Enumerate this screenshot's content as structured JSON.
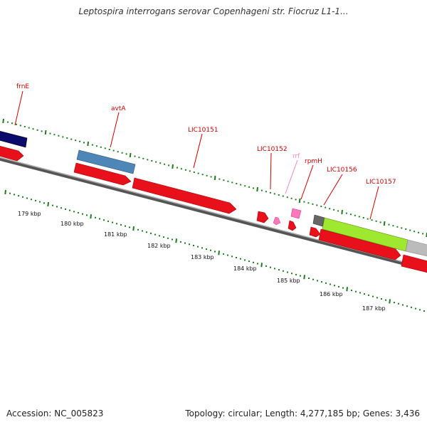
{
  "title": "Leptospira interrogans serovar Copenhageni str. Fiocruz L1-1...",
  "footer": {
    "accession": "Accession: NC_005823",
    "summary": "Topology: circular; Length: 4,277,185 bp; Genes: 3,436"
  },
  "colors": {
    "cds": "#e8101a",
    "gene_label": "#cc0000",
    "trna": "#ff77bb",
    "trna_label": "#ee88bb",
    "backbone": "#777777",
    "tick": "#1e7d1e",
    "navy": "#0b0b6e",
    "steelblue": "#4f86b8",
    "lime": "#9ee830",
    "gray": "#bbbbbb",
    "darkgray": "#666666"
  },
  "scale_labels": [
    "179 kbp",
    "180 kbp",
    "181 kbp",
    "182 kbp",
    "183 kbp",
    "184 kbp",
    "185 kbp",
    "186 kbp",
    "187 kbp"
  ],
  "gene_labels": [
    {
      "id": "frnE",
      "text": "frnE",
      "kind": "cds"
    },
    {
      "id": "avtA",
      "text": "avtA",
      "kind": "cds"
    },
    {
      "id": "LIC10151",
      "text": "LIC10151",
      "kind": "cds"
    },
    {
      "id": "LIC10152",
      "text": "LIC10152",
      "kind": "cds"
    },
    {
      "id": "rrf",
      "text": "rrf",
      "kind": "rna"
    },
    {
      "id": "rpmH",
      "text": "rpmH",
      "kind": "cds"
    },
    {
      "id": "LIC10156",
      "text": "LIC10156",
      "kind": "cds"
    },
    {
      "id": "LIC10157",
      "text": "LIC10157",
      "kind": "cds"
    }
  ]
}
